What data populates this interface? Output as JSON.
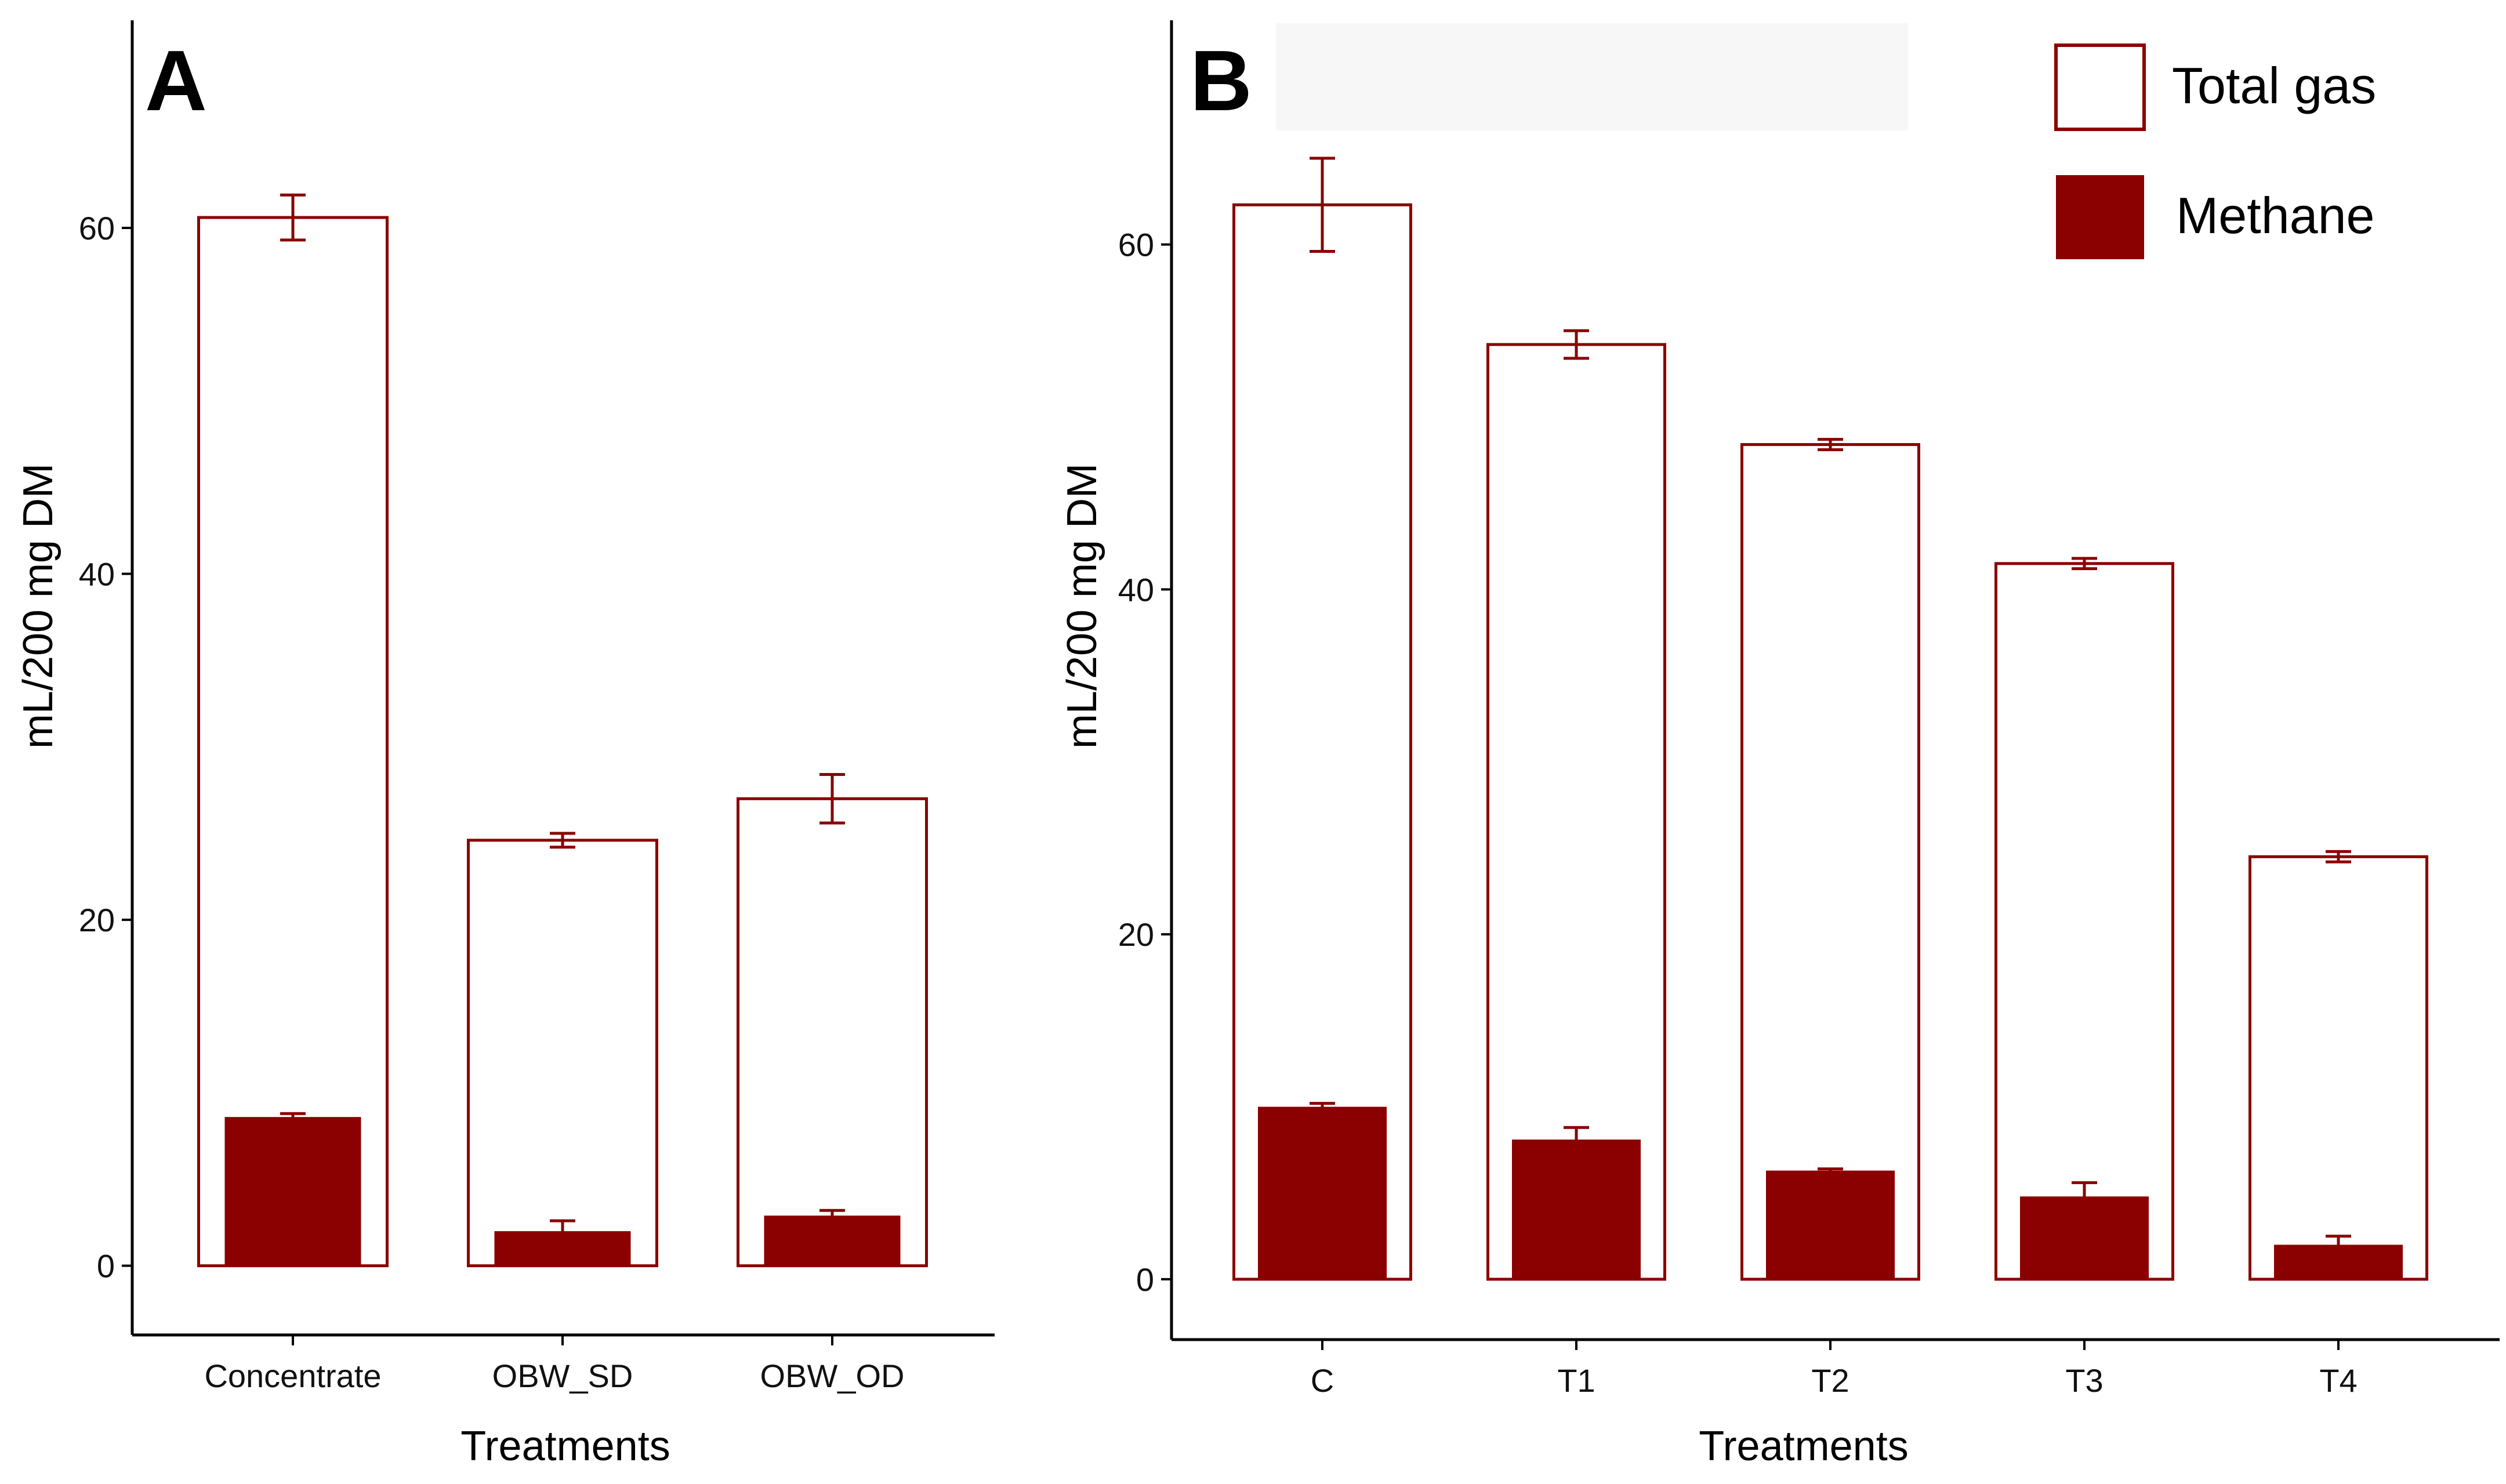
{
  "colors": {
    "bar_outline": "#8b0000",
    "methane_fill": "#8b0000",
    "axis": "#000000"
  },
  "legend": {
    "total_gas": "Total gas",
    "methane": "Methane"
  },
  "chart_data": [
    {
      "type": "bar",
      "panel": "A",
      "xlabel": "Treatments",
      "ylabel": "mL/200 mg DM",
      "ylim": [
        -4,
        72
      ],
      "yticks": [
        0,
        20,
        40,
        60
      ],
      "yticks_labels": [
        "0",
        "20",
        "40",
        "60"
      ],
      "categories": [
        "Concentrate",
        "OBW_SD",
        "OBW_OD"
      ],
      "series": [
        {
          "name": "Total gas",
          "style": "outline",
          "values": [
            60.6,
            24.6,
            27.0
          ],
          "errors": [
            1.3,
            0.4,
            1.4
          ]
        },
        {
          "name": "Methane",
          "style": "filled",
          "values": [
            8.6,
            2.0,
            2.9
          ],
          "errors": [
            0.2,
            0.6,
            0.3
          ]
        }
      ]
    },
    {
      "type": "bar",
      "panel": "B",
      "xlabel": "Treatments",
      "ylabel": "mL/200 mg DM",
      "ylim": [
        -3.5,
        73
      ],
      "yticks": [
        0,
        20,
        40,
        60
      ],
      "yticks_labels": [
        "0",
        "20",
        "40",
        "60"
      ],
      "categories": [
        "C",
        "T1",
        "T2",
        "T3",
        "T4"
      ],
      "series": [
        {
          "name": "Total gas",
          "style": "outline",
          "values": [
            62.3,
            54.2,
            48.4,
            41.5,
            24.5
          ],
          "errors": [
            2.7,
            0.8,
            0.3,
            0.3,
            0.3
          ]
        },
        {
          "name": "Methane",
          "style": "filled",
          "values": [
            10.0,
            8.1,
            6.3,
            4.8,
            2.0
          ],
          "errors": [
            0.2,
            0.7,
            0.1,
            0.8,
            0.5
          ]
        }
      ]
    }
  ]
}
